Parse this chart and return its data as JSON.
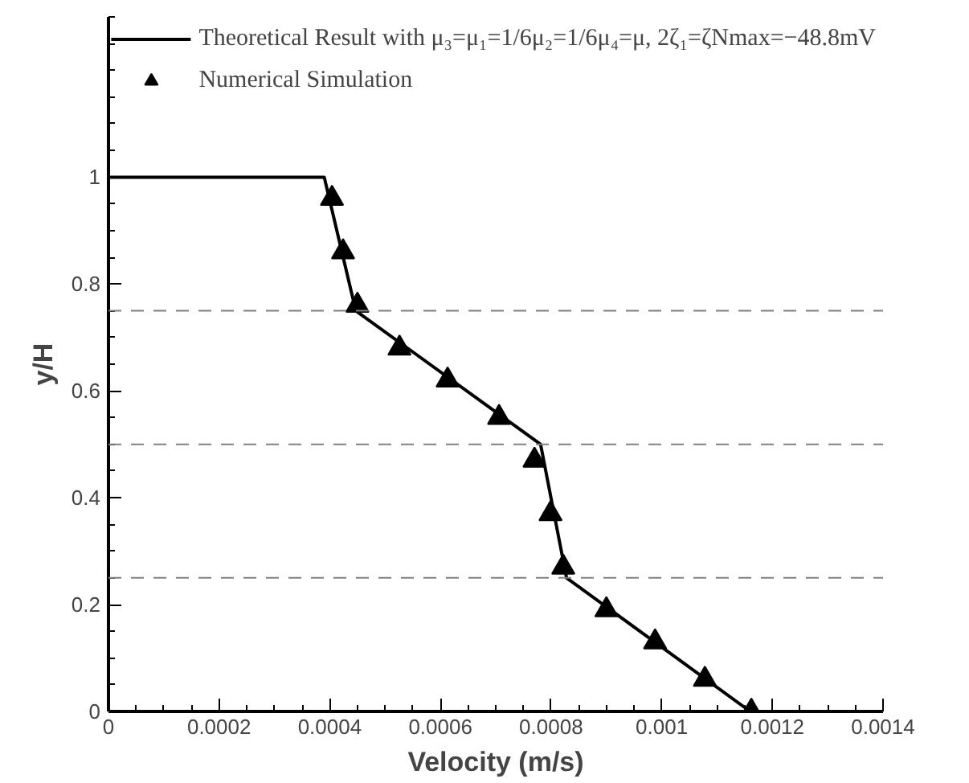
{
  "chart_data": {
    "type": "line",
    "xlabel": "Velocity (m/s)",
    "ylabel": "y/H",
    "xlim": [
      0,
      0.0014
    ],
    "ylim": [
      0,
      1.3
    ],
    "xticks": [
      0,
      0.0002,
      0.0004,
      0.0006,
      0.0008,
      0.001,
      0.0012,
      0.0014
    ],
    "yticks": [
      0,
      0.2,
      0.4,
      0.6,
      0.8,
      1
    ],
    "grid": false,
    "legend": "top right",
    "series": [
      {
        "name": "Theoretical Result with μ₃=μ₁=1/6μ₂=1/6μ₄=μ, 2ζ₁=ζNmax=−48.8mV",
        "color": "#000000",
        "marker": "none",
        "line_style": "solid",
        "x": [
          0,
          0.00039,
          0.000447,
          0.000781,
          0.000828,
          0.00116
        ],
        "values": [
          1,
          1,
          0.75,
          0.5,
          0.25,
          0
        ]
      },
      {
        "name": "Numerical Simulation",
        "type": "scatter",
        "color": "#000000",
        "marker": "triangle",
        "x": [
          0.000404,
          0.000424,
          0.00045,
          0.000526,
          0.000613,
          0.000706,
          0.00077,
          0.000799,
          0.000822,
          0.0009,
          0.000988,
          0.001078,
          0.001162
        ],
        "values": [
          0.96,
          0.86,
          0.76,
          0.68,
          0.62,
          0.55,
          0.47,
          0.37,
          0.27,
          0.19,
          0.13,
          0.06,
          0
        ]
      }
    ],
    "ref_lines": [
      {
        "axis": "y",
        "value": 0.25,
        "color": "#808080",
        "line_style": "dashed"
      },
      {
        "axis": "y",
        "value": 0.5,
        "color": "#808080",
        "line_style": "dashed"
      },
      {
        "axis": "y",
        "value": 0.75,
        "color": "#808080",
        "line_style": "dashed"
      }
    ]
  }
}
